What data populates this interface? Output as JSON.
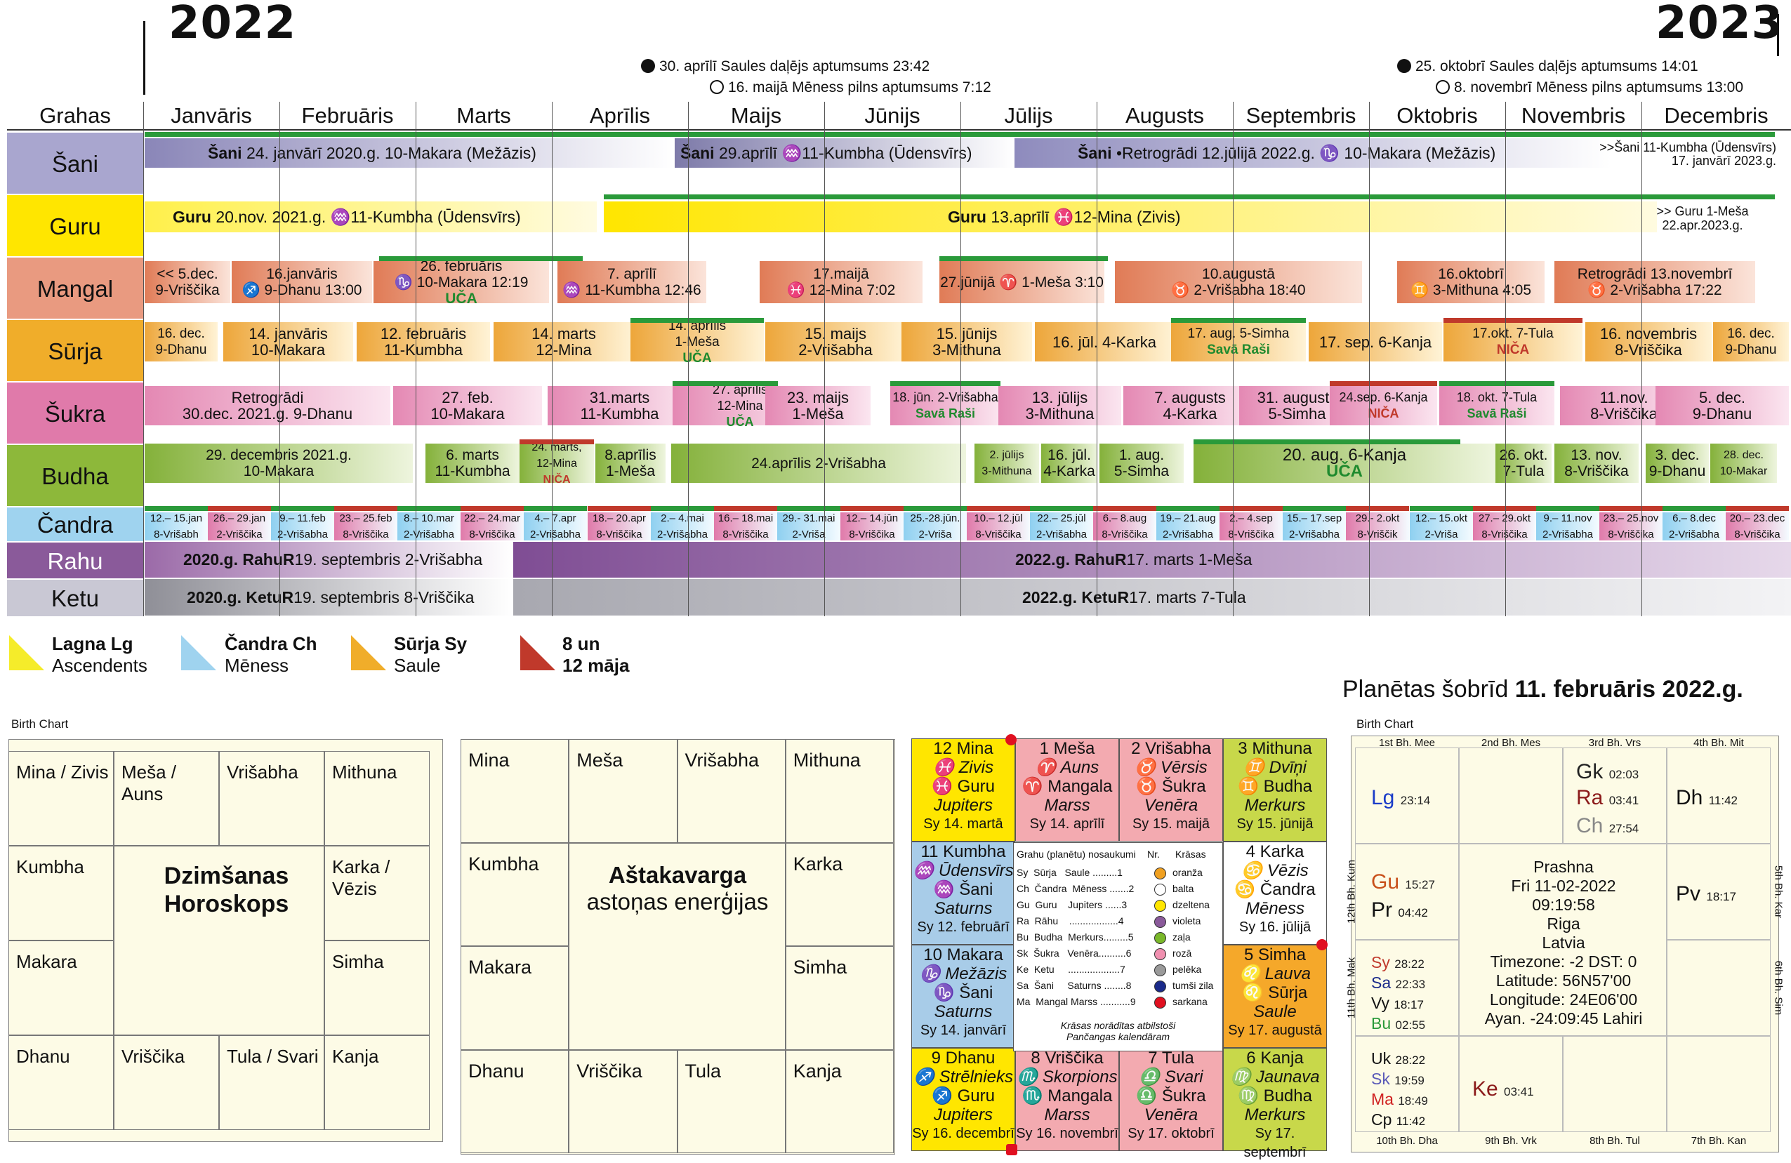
{
  "years": {
    "left": "2022",
    "right": "2023"
  },
  "eclipses": {
    "e1": "30. aprīlī Saules daļējs aptumsums 23:42",
    "e2": "16. maijā Mēness pilns aptumsums 7:12",
    "e3": "25. oktobrī Saules daļējs aptumsums 14:01",
    "e4": "8. novembrī Mēness pilns aptumsums 13:00"
  },
  "header_label": "Grahas",
  "months": [
    "Janvāris",
    "Februāris",
    "Marts",
    "Aprīlis",
    "Maijs",
    "Jūnijs",
    "Jūlijs",
    "Augusts",
    "Septembris",
    "Oktobris",
    "Novembris",
    "Decembris"
  ],
  "rows": [
    "Šani",
    "Guru",
    "Mangal",
    "Sūrja",
    "Šukra",
    "Budha",
    "Čandra",
    "Rahu",
    "Ketu"
  ],
  "colors": {
    "shani": "#a9a6cf",
    "guru": "#ffe600",
    "mangal": "#e99a80",
    "surja": "#f0ad2a",
    "shukra": "#e07aaa",
    "budha": "#8db83a",
    "candra": "#9fd3ef",
    "rahu": "#8a5a9a",
    "ketu": "#c9c8d4",
    "green": "#2a9a3a",
    "red": "#c0392b"
  },
  "shani": {
    "b1a": "Šani",
    "b1b": "24. janvārī  2020.g. 10-Makara (Mežāzis)",
    "b2a": "Šani",
    "b2b": "29.aprīlī ♒11-Kumbha (Ūdensvīrs)",
    "b3a": "Šani",
    "b3b": "•Retrogrādi 12.jūlijā 2022.g. ♑ 10-Makara (Mežāzis)",
    "b4l1": ">>Šani 11-Kumbha (Ūdensvīrs)",
    "b4l2": "17. janvārī  2023.g."
  },
  "guru": {
    "b1a": "Guru",
    "b1b": "20.nov. 2021.g. ♒11-Kumbha (Ūdensvīrs)",
    "b2a": "Guru",
    "b2b": "13.aprīlī ♓12-Mina (Zivis)",
    "b3l1": ">> Guru  1-Meša",
    "b3l2": "22.apr.2023.g."
  },
  "mangal": [
    {
      "l1": "<< 5.dec.",
      "l2": "9-Vriščika"
    },
    {
      "l1": "16.janvāris",
      "l2": "♐ 9-Dhanu 13:00"
    },
    {
      "l1": "26. februāris",
      "l2": "♑ 10-Makara 12:19",
      "tag": "UČA"
    },
    {
      "l1": "7. aprīlī",
      "l2": "♒ 11-Kumbha 12:46"
    },
    {
      "l1": "17.maijā",
      "l2": "♓ 12-Mina 7:02"
    },
    {
      "l1": "27.jūnijā ♈ 1-Meša 3:10",
      "l2": ""
    },
    {
      "l1": "10.augustā",
      "l2": "♉ 2-Vrišabha 18:40"
    },
    {
      "l1": "16.oktobrī",
      "l2": "♊ 3-Mithuna 4:05"
    },
    {
      "l1": "Retrogrādi 13.novembrī",
      "l2": "♉ 2-Vrišabha 17:22"
    }
  ],
  "surja": [
    {
      "l1": "16. dec.",
      "l2": "9-Dhanu"
    },
    {
      "l1": "14. janvāris",
      "l2": "10-Makara"
    },
    {
      "l1": "12. februāris",
      "l2": "11-Kumbha"
    },
    {
      "l1": "14. marts",
      "l2": "12-Mina"
    },
    {
      "l1": "14. aprīlis",
      "l2": "1-Meša",
      "tag": "UČA"
    },
    {
      "l1": "15. maijs",
      "l2": "2-Vrišabha"
    },
    {
      "l1": "15. jūnijs",
      "l2": "3-Mithuna"
    },
    {
      "l1": "16. jūl. 4-Karka",
      "l2": ""
    },
    {
      "l1": "17. aug. 5-Simha",
      "l2": "",
      "tag": "Savā Raši"
    },
    {
      "l1": "17. sep. 6-Kanja",
      "l2": ""
    },
    {
      "l1": "17.okt. 7-Tula",
      "l2": "",
      "tag": "NIČA"
    },
    {
      "l1": "16. novembris",
      "l2": "8-Vriščika"
    },
    {
      "l1": "16. dec.",
      "l2": "9-Dhanu"
    }
  ],
  "shukra": [
    {
      "l1": "Retrogrādi",
      "l2": "30.dec. 2021.g. 9-Dhanu"
    },
    {
      "l1": "27. feb.",
      "l2": "10-Makara"
    },
    {
      "l1": "31.marts",
      "l2": "11-Kumbha"
    },
    {
      "l1": "27. aprīlis",
      "l2": "12-Mina",
      "tag": "UČA"
    },
    {
      "l1": "23. maijs",
      "l2": "1-Meša"
    },
    {
      "l1": "18. jūn. 2-Vrišabha",
      "l2": "",
      "tag": "Savā Raši"
    },
    {
      "l1": "13. jūlijs",
      "l2": "3-Mithuna"
    },
    {
      "l1": "7. augusts",
      "l2": "4-Karka"
    },
    {
      "l1": "31. augusts",
      "l2": "5-Simha"
    },
    {
      "l1": "24.sep. 6-Kanja",
      "l2": "",
      "tag": "NIČA"
    },
    {
      "l1": "18. okt. 7-Tula",
      "l2": "",
      "tag": "Savā Raši"
    },
    {
      "l1": "11.nov.",
      "l2": "8-Vriščika"
    },
    {
      "l1": "5. dec.",
      "l2": "9-Dhanu"
    }
  ],
  "budha": [
    {
      "l1": "29. decembris 2021.g.",
      "l2": "10-Makara"
    },
    {
      "l1": "6. marts",
      "l2": "11-Kumbha"
    },
    {
      "l1": "24. marts,",
      "l2": "12-Mina",
      "tag": "NIČA"
    },
    {
      "l1": "8.aprīlis",
      "l2": "1-Meša"
    },
    {
      "l1": "24.aprīlis 2-Vrišabha",
      "l2": ""
    },
    {
      "l1": "2. jūlijs",
      "l2": "3-Mithuna"
    },
    {
      "l1": "16. jūl.",
      "l2": "4-Karka"
    },
    {
      "l1": "1. aug.",
      "l2": "5-Simha"
    },
    {
      "l1": "20. aug. 6-Kanja",
      "l2": "",
      "tag": "UČA"
    },
    {
      "l1": "26. okt.",
      "l2": "7-Tula"
    },
    {
      "l1": "13. nov.",
      "l2": "8-Vriščika"
    },
    {
      "l1": "3. dec.",
      "l2": "9-Dhanu"
    },
    {
      "l1": "28. dec.",
      "l2": "10-Makar"
    }
  ],
  "candra": [
    {
      "l1": "12.– 15.jan",
      "l2": "8-Vrišabh"
    },
    {
      "l1": "26.– 29.jan",
      "l2": "2-Vriščika"
    },
    {
      "l1": "9.– 11.feb",
      "l2": "2-Vrišabha"
    },
    {
      "l1": "23.– 25.feb",
      "l2": "8-Vriščika"
    },
    {
      "l1": "8.– 10.mar",
      "l2": "2-Vrišabha"
    },
    {
      "l1": "22.– 24.mar",
      "l2": "8-Vriščika"
    },
    {
      "l1": "4.– 7.apr",
      "l2": "2-Vrišabha"
    },
    {
      "l1": "18.– 20.apr",
      "l2": "8-Vriščika"
    },
    {
      "l1": "2.– 4.mai",
      "l2": "2-Vrišabha"
    },
    {
      "l1": "16.– 18.mai",
      "l2": "8-Vriščika"
    },
    {
      "l1": "29.- 31.mai",
      "l2": "2-Vriša"
    },
    {
      "l1": "12.– 14.jūn",
      "l2": "8-Vriščika"
    },
    {
      "l1": "25.-28.jūn.",
      "l2": "2-Vriša"
    },
    {
      "l1": "10.– 12.jūl",
      "l2": "8-Vriščika"
    },
    {
      "l1": "22.– 25.jūl",
      "l2": "2-Vrišabha"
    },
    {
      "l1": "6.– 8.aug",
      "l2": "8-Vriščika"
    },
    {
      "l1": "19.– 21.aug",
      "l2": "2-Vrišabha"
    },
    {
      "l1": "2.– 4.sep",
      "l2": "8-Vriščika"
    },
    {
      "l1": "15.– 17.sep",
      "l2": "2-Vrišabha"
    },
    {
      "l1": "29.- 2.okt",
      "l2": "8-Vriščik"
    },
    {
      "l1": "12.– 15.okt",
      "l2": "2-Vriša"
    },
    {
      "l1": "27.– 29.okt",
      "l2": "8-Vriščika"
    },
    {
      "l1": "9.– 11.nov",
      "l2": "2-Vrišabha"
    },
    {
      "l1": "23.– 25.nov",
      "l2": "8-Vriščika"
    },
    {
      "l1": "6.– 8.dec",
      "l2": "2-Vrišabha"
    },
    {
      "l1": "20.– 23.dec",
      "l2": "8-Vriščika"
    }
  ],
  "rahu": {
    "b1a": "2020.g. RahuR",
    "b1b": " 19. septembris 2-Vrišabha",
    "b2a": "2022.g. RahuR",
    "b2b": " 17. marts 1-Meša"
  },
  "ketu": {
    "b1a": "2020.g. KetuR",
    "b1b": " 19. septembris 8-Vriščika",
    "b2a": "2022.g. KetuR",
    "b2b": " 17. marts 7-Tula"
  },
  "legend": [
    {
      "a": "Lagna Lg",
      "b": "Ascendents"
    },
    {
      "a": "Čandra Ch",
      "b": "Mēness"
    },
    {
      "a": "Sūrja Sy",
      "b": "Saule"
    },
    {
      "a": "8 un",
      "b": "12 māja"
    }
  ],
  "now_title_a": "Planētas šobrīd ",
  "now_title_b": "11. februāris 2022.g.",
  "birth_label": "Birth Chart",
  "dz": {
    "cells": [
      "Mina / Zivis",
      "Meša / Auns",
      "Vrišabha",
      "Mithuna",
      "Kumbha",
      "Karka / Vēzis",
      "Makara",
      "Simha",
      "Dhanu",
      "Vriščika",
      "Tula / Svari",
      "Kanja"
    ],
    "title1": "Dzimšanas",
    "title2": "Horoskops"
  },
  "ast": {
    "cells": [
      "Mina",
      "Meša",
      "Vrišabha",
      "Mithuna",
      "Kumbha",
      "Karka",
      "Makara",
      "Simha",
      "Dhanu",
      "Vriščika",
      "Tula",
      "Kanja"
    ],
    "title1": "Aštakavarga",
    "title2": "astoņas enerģijas"
  },
  "si": [
    {
      "l1": "12 Mina",
      "l2": "♓ Zivis",
      "l3": "♓ Guru",
      "l4": "Jupiters",
      "l5": "Sy 14. martā"
    },
    {
      "l1": "1  Meša",
      "l2": "♈ Auns",
      "l3": "♈ Mangala",
      "l4": "Marss",
      "l5": "Sy  14. aprīlī"
    },
    {
      "l1": "2 Vrišabha",
      "l2": "♉ Vērsis",
      "l3": "♉ Šukra",
      "l4": "Venēra",
      "l5": "Sy  15. maijā"
    },
    {
      "l1": "3 Mithuna",
      "l2": "♊ Dvīņi",
      "l3": "♊ Budha",
      "l4": "Merkurs",
      "l5": "Sy  15. jūnijā"
    },
    {
      "l1": "11 Kumbha",
      "l2": "♒ Ūdensvīrs",
      "l3": "♒ Šani",
      "l4": "Saturns",
      "l5": "Sy  12. februārī"
    },
    {
      "l1": "4 Karka",
      "l2": "♋ Vēzis",
      "l3": "♋ Čandra",
      "l4": "Mēness",
      "l5": "Sy  16. jūlijā"
    },
    {
      "l1": "10 Makara",
      "l2": "♑ Mežāzis",
      "l3": "♑ Šani",
      "l4": "Saturns",
      "l5": "Sy  14. janvārī"
    },
    {
      "l1": "5 Simha",
      "l2": "♌ Lauva",
      "l3": "♌ Sūrja",
      "l4": "Saule",
      "l5": "Sy  17. augustā"
    },
    {
      "l1": "9 Dhanu",
      "l2": "♐ Strēlnieks",
      "l3": "♐ Guru",
      "l4": "Jupiters",
      "l5": "Sy 16. decembrī"
    },
    {
      "l1": "8 Vriščika",
      "l2": "♏ Skorpions",
      "l3": "♏ Mangala",
      "l4": "Marss",
      "l5": "Sy 16. novembrī"
    },
    {
      "l1": "7 Tula",
      "l2": "♎ Svari",
      "l3": "♎ Šukra",
      "l4": "Venēra",
      "l5": "Sy  17. oktobrī"
    },
    {
      "l1": "6 Kanja",
      "l2": "♍ Jaunava",
      "l3": "♍ Budha",
      "l4": "Merkurs",
      "l5": "Sy  17. septembrī"
    }
  ],
  "si_center": {
    "h1": "Grahu (planētu) nosaukumi",
    "h2": "Nr.",
    "h3": "Krāsas",
    "lines": [
      "Sy  Sūrja   Saule .........1",
      "Ch  Čandra  Mēness .......2",
      "Gu  Guru    Jupiters ......3",
      "Ra  Rāhu    ..................4",
      "Bu  Budha  Merkurs.........5",
      "Sk  Šukra   Venēra..........6",
      "Ke  Ketu     ...................7",
      "Sa  Šani     Saturns ........8",
      "Ma  Mangal Marss ...........9"
    ],
    "colors": [
      "oranža",
      "balta",
      "dzeltena",
      "violeta",
      "zaļa",
      "rozā",
      "pelēka",
      "tumši zila",
      "sarkana"
    ],
    "footer1": "Krāsas norādītas atbilstoši",
    "footer2": "Pančangas kalendāram"
  },
  "prashna": {
    "houses_top": [
      "1st Bh.  Mee",
      "2nd Bh.  Mes",
      "3rd Bh.  Vrs",
      "4th Bh.  Mit"
    ],
    "houses_bottom": [
      "10th Bh.  Dha",
      "9th Bh.  Vrk",
      "8th Bh.  Tul",
      "7th Bh.  Kan"
    ],
    "houses_left": [
      "12th Bh.  Kum",
      "11th Bh.  Mak"
    ],
    "houses_right": [
      "5th Bh.  Kar",
      "6th Bh.  Sim"
    ],
    "planets": {
      "gk": "Gk",
      "gk_d": "02:03",
      "ra": "Ra",
      "ra_d": "03:41",
      "ch": "Ch",
      "ch_d": "27:54",
      "lg": "Lg",
      "lg_d": "23:14",
      "dh": "Dh",
      "dh_d": "11:42",
      "gu": "Gu",
      "gu_d": "15:27",
      "pr": "Pr",
      "pr_d": "04:42",
      "pv": "Pv",
      "pv_d": "18:17",
      "sy": "Sy",
      "sy_d": "28:22",
      "sa": "Sa",
      "sa_d": "22:33",
      "vy": "Vy",
      "vy_d": "18:17",
      "bu": "Bu",
      "bu_d": "02:55",
      "uk": "Uk",
      "uk_d": "28:22",
      "sk": "Sk",
      "sk_d": "19:59",
      "ma": "Ma",
      "ma_d": "18:49",
      "cp": "Cp",
      "cp_d": "11:42",
      "ke": "Ke",
      "ke_d": "03:41"
    },
    "center": [
      "Prashna",
      "Fri 11-02-2022",
      "09:19:58",
      "Riga",
      "Latvia",
      "Timezone: -2 DST: 0",
      "Latitude: 56N57'00",
      "Longitude: 24E06'00",
      "Ayan. -24:09:45 Lahiri"
    ]
  }
}
